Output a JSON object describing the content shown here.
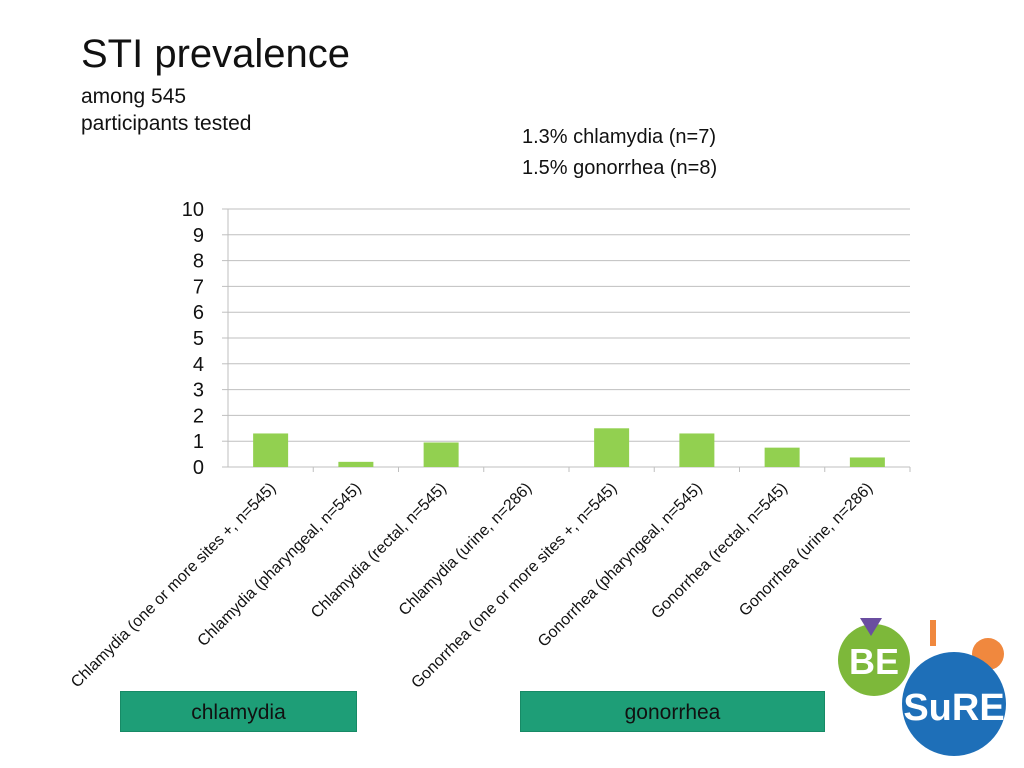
{
  "header": {
    "title": "STI prevalence",
    "subtitle_line1": "among 545",
    "subtitle_line2": "participants tested"
  },
  "annotations": {
    "line1": "1.3% chlamydia (n=7)",
    "line2": "1.5% gonorrhea (n=8)"
  },
  "groups": {
    "chlamydia": "chlamydia",
    "gonorrhea": "gonorrhea"
  },
  "logo": {
    "text_be": "BE",
    "text_sure": "SuRE",
    "colors": {
      "green": "#7db83a",
      "blue": "#1e6fb8",
      "orange": "#f0883e",
      "purple": "#6a4ea0"
    }
  },
  "chart_data": {
    "type": "bar",
    "categories": [
      "Chlamydia (one or more sites +, n=545)",
      "Chlamydia (pharyngeal, n=545)",
      "Chlamydia (rectal, n=545)",
      "Chlamydia (urine, n=286)",
      "Gonorrhea (one or more sites +, n=545)",
      "Gonorrhea (pharyngeal, n=545)",
      "Gonorrhea (rectal, n=545)",
      "Gonorrhea (urine, n=286)"
    ],
    "values": [
      1.3,
      0.2,
      0.95,
      0,
      1.5,
      1.3,
      0.75,
      0.37
    ],
    "yticks": [
      "0",
      "1",
      "2",
      "3",
      "4",
      "5",
      "6",
      "7",
      "8",
      "9",
      "10"
    ],
    "ylim": [
      0,
      10
    ],
    "grid": true,
    "bar_color": "#92d050",
    "grid_color": "#bfbfbf"
  }
}
